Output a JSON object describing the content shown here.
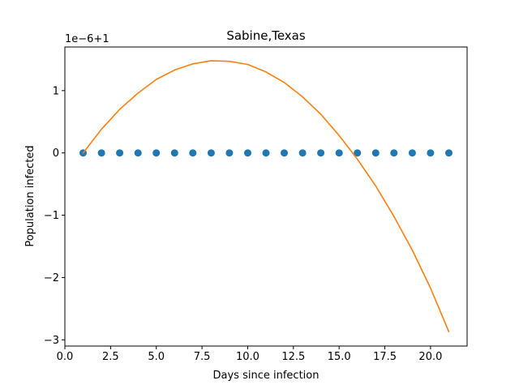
{
  "chart_data": {
    "type": "line",
    "title": "Sabine,Texas",
    "xlabel": "Days since infection",
    "ylabel": "Population infected",
    "y_offset_label": "1e−6+1",
    "xlim": [
      0,
      22
    ],
    "ylim": [
      -3.1,
      1.7
    ],
    "x_ticks": [
      0.0,
      2.5,
      5.0,
      7.5,
      10.0,
      12.5,
      15.0,
      17.5,
      20.0
    ],
    "x_tick_labels": [
      "0.0",
      "2.5",
      "5.0",
      "7.5",
      "10.0",
      "12.5",
      "15.0",
      "17.5",
      "20.0"
    ],
    "y_ticks": [
      -3,
      -2,
      -1,
      0,
      1
    ],
    "y_tick_labels": [
      "−3",
      "−2",
      "−1",
      "0",
      "1"
    ],
    "grid": false,
    "series": [
      {
        "type": "scatter",
        "color": "#1f77b4",
        "x": [
          1,
          2,
          3,
          4,
          5,
          6,
          7,
          8,
          9,
          10,
          11,
          12,
          13,
          14,
          15,
          16,
          17,
          18,
          19,
          20,
          21
        ],
        "y": [
          0,
          0,
          0,
          0,
          0,
          0,
          0,
          0,
          0,
          0,
          0,
          0,
          0,
          0,
          0,
          0,
          0,
          0,
          0,
          0,
          0
        ]
      },
      {
        "type": "line",
        "color": "#ff7f0e",
        "x": [
          1,
          2,
          3,
          4,
          5,
          6,
          7,
          8,
          9,
          10,
          11,
          12,
          13,
          14,
          15,
          16,
          17,
          18,
          19,
          20,
          21
        ],
        "y": [
          0.0,
          0.38,
          0.7,
          0.96,
          1.18,
          1.33,
          1.43,
          1.48,
          1.47,
          1.42,
          1.3,
          1.13,
          0.9,
          0.62,
          0.28,
          -0.1,
          -0.53,
          -1.02,
          -1.56,
          -2.17,
          -2.87
        ]
      }
    ]
  }
}
